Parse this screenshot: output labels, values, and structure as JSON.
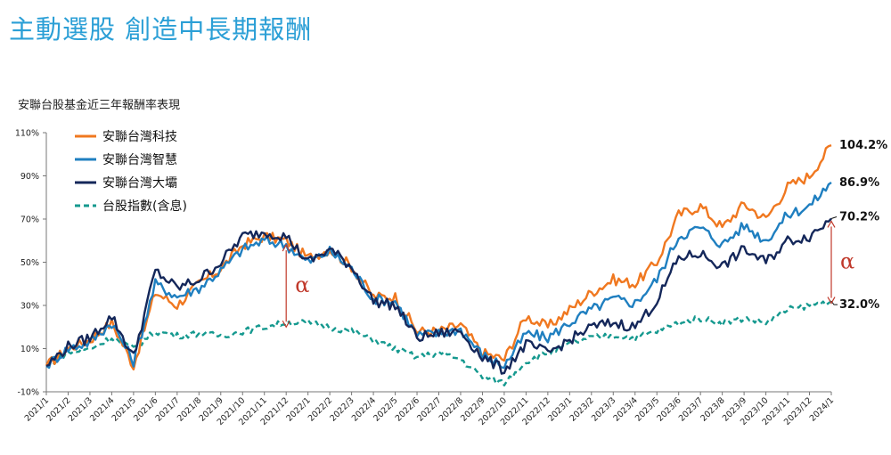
{
  "header": {
    "title": "主動選股 創造中長期報酬",
    "subtitle": "安聯台股基金近三年報酬率表現"
  },
  "chart_data": {
    "type": "line",
    "title": "",
    "xlabel": "",
    "ylabel": "",
    "ylim": [
      -10,
      110
    ],
    "yticks": [
      "-10%",
      "10%",
      "30%",
      "50%",
      "70%",
      "90%",
      "110%"
    ],
    "x_ticks": [
      "2021/1",
      "2021/2",
      "2021/3",
      "2021/4",
      "2021/5",
      "2021/6",
      "2021/7",
      "2021/8",
      "2021/9",
      "2021/10",
      "2021/11",
      "2021/12",
      "2022/1",
      "2022/2",
      "2022/3",
      "2022/4",
      "2022/5",
      "2022/6",
      "2022/7",
      "2022/8",
      "2022/9",
      "2022/10",
      "2022/11",
      "2022/12",
      "2023/1",
      "2023/2",
      "2023/3",
      "2023/4",
      "2023/5",
      "2023/6",
      "2023/7",
      "2023/8",
      "2023/9",
      "2023/10",
      "2023/11",
      "2023/12",
      "2024/1"
    ],
    "grid": false,
    "legend_position": "top-left",
    "series": [
      {
        "name": "安聯台灣科技",
        "color": "#f07820",
        "dash": false,
        "end_label": "104.2%",
        "x": [
          "2021/1",
          "2021/2",
          "2021/3",
          "2021/4",
          "2021/5",
          "2021/6",
          "2021/7",
          "2021/8",
          "2021/9",
          "2021/10",
          "2021/11",
          "2021/12",
          "2022/1",
          "2022/2",
          "2022/3",
          "2022/4",
          "2022/5",
          "2022/6",
          "2022/7",
          "2022/8",
          "2022/9",
          "2022/10",
          "2022/11",
          "2022/12",
          "2023/1",
          "2023/2",
          "2023/3",
          "2023/4",
          "2023/5",
          "2023/6",
          "2023/7",
          "2023/8",
          "2023/9",
          "2023/10",
          "2023/11",
          "2023/12",
          "2024/1"
        ],
        "values": [
          2,
          10,
          14,
          22,
          2,
          36,
          30,
          40,
          47,
          58,
          62,
          60,
          52,
          56,
          48,
          34,
          34,
          18,
          18,
          21,
          8,
          5,
          25,
          20,
          28,
          36,
          42,
          40,
          50,
          72,
          76,
          66,
          77,
          70,
          85,
          90,
          104.2
        ]
      },
      {
        "name": "安聯台灣智慧",
        "color": "#1f7fc0",
        "dash": false,
        "end_label": "86.9%",
        "x": [
          "2021/1",
          "2021/2",
          "2021/3",
          "2021/4",
          "2021/5",
          "2021/6",
          "2021/7",
          "2021/8",
          "2021/9",
          "2021/10",
          "2021/11",
          "2021/12",
          "2022/1",
          "2022/2",
          "2022/3",
          "2022/4",
          "2022/5",
          "2022/6",
          "2022/7",
          "2022/8",
          "2022/9",
          "2022/10",
          "2022/11",
          "2022/12",
          "2023/1",
          "2023/2",
          "2023/3",
          "2023/4",
          "2023/5",
          "2023/6",
          "2023/7",
          "2023/8",
          "2023/9",
          "2023/10",
          "2023/11",
          "2023/12",
          "2024/1"
        ],
        "values": [
          2,
          10,
          13,
          22,
          4,
          40,
          34,
          38,
          46,
          56,
          60,
          58,
          50,
          55,
          47,
          33,
          32,
          16,
          17,
          19,
          7,
          2,
          17,
          15,
          22,
          28,
          33,
          31,
          42,
          62,
          66,
          58,
          67,
          60,
          72,
          76,
          86.9
        ]
      },
      {
        "name": "安聯台灣大壩",
        "color": "#14275a",
        "dash": false,
        "end_label": "70.2%",
        "x": [
          "2021/1",
          "2021/2",
          "2021/3",
          "2021/4",
          "2021/5",
          "2021/6",
          "2021/7",
          "2021/8",
          "2021/9",
          "2021/10",
          "2021/11",
          "2021/12",
          "2022/1",
          "2022/2",
          "2022/3",
          "2022/4",
          "2022/5",
          "2022/6",
          "2022/7",
          "2022/8",
          "2022/9",
          "2022/10",
          "2022/11",
          "2022/12",
          "2023/1",
          "2023/2",
          "2023/3",
          "2023/4",
          "2023/5",
          "2023/6",
          "2023/7",
          "2023/8",
          "2023/9",
          "2023/10",
          "2023/11",
          "2023/12",
          "2024/1"
        ],
        "values": [
          2,
          11,
          15,
          25,
          6,
          46,
          38,
          42,
          50,
          62,
          64,
          62,
          50,
          56,
          48,
          32,
          30,
          15,
          17,
          18,
          6,
          0,
          12,
          8,
          14,
          20,
          22,
          20,
          32,
          52,
          54,
          48,
          56,
          50,
          60,
          62,
          70.2
        ]
      },
      {
        "name": "台股指數(含息)",
        "color": "#15998f",
        "dash": true,
        "end_label": "32.0%",
        "x": [
          "2021/1",
          "2021/2",
          "2021/3",
          "2021/4",
          "2021/5",
          "2021/6",
          "2021/7",
          "2021/8",
          "2021/9",
          "2021/10",
          "2021/11",
          "2021/12",
          "2022/1",
          "2022/2",
          "2022/3",
          "2022/4",
          "2022/5",
          "2022/6",
          "2022/7",
          "2022/8",
          "2022/9",
          "2022/10",
          "2022/11",
          "2022/12",
          "2023/1",
          "2023/2",
          "2023/3",
          "2023/4",
          "2023/5",
          "2023/6",
          "2023/7",
          "2023/8",
          "2023/9",
          "2023/10",
          "2023/11",
          "2023/12",
          "2024/1"
        ],
        "values": [
          2,
          8,
          10,
          15,
          10,
          18,
          16,
          17,
          16,
          18,
          20,
          22,
          22,
          20,
          18,
          14,
          10,
          6,
          8,
          5,
          -3,
          -6,
          4,
          8,
          12,
          15,
          16,
          15,
          18,
          22,
          24,
          22,
          24,
          22,
          28,
          30,
          32.0
        ]
      }
    ],
    "annotations": [
      {
        "text": "α",
        "at_x": "2021/12",
        "from": 20,
        "to": 58
      },
      {
        "text": "α",
        "at_x": "2024/1",
        "from": 31,
        "to": 69
      }
    ]
  }
}
